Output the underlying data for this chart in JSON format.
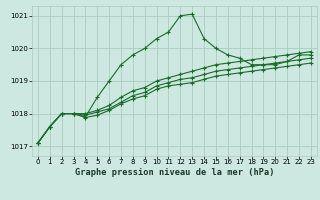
{
  "title": "Graphe pression niveau de la mer (hPa)",
  "background_color": "#cce8e0",
  "grid_color": "#aaccbe",
  "line_color": "#1a6b2a",
  "xlim": [
    -0.5,
    23.5
  ],
  "ylim": [
    1016.7,
    1021.3
  ],
  "yticks": [
    1017,
    1018,
    1019,
    1020,
    1021
  ],
  "xticks": [
    0,
    1,
    2,
    3,
    4,
    5,
    6,
    7,
    8,
    9,
    10,
    11,
    12,
    13,
    14,
    15,
    16,
    17,
    18,
    19,
    20,
    21,
    22,
    23
  ],
  "main_line": [
    1017.1,
    1017.6,
    1018.0,
    1018.0,
    1017.9,
    1018.5,
    1019.0,
    1019.5,
    1019.8,
    1020.0,
    1020.3,
    1020.5,
    1021.0,
    1021.05,
    1020.3,
    1020.0,
    1019.8,
    1019.7,
    1019.5,
    1019.5,
    1019.5,
    1019.6,
    1019.8,
    1019.8
  ],
  "line2": [
    1017.1,
    1017.6,
    1018.0,
    1018.0,
    1018.0,
    1018.1,
    1018.25,
    1018.5,
    1018.7,
    1018.8,
    1019.0,
    1019.1,
    1019.2,
    1019.3,
    1019.4,
    1019.5,
    1019.55,
    1019.6,
    1019.65,
    1019.7,
    1019.75,
    1019.8,
    1019.85,
    1019.9
  ],
  "line3": [
    1017.1,
    1017.6,
    1018.0,
    1018.0,
    1017.95,
    1018.05,
    1018.15,
    1018.35,
    1018.55,
    1018.65,
    1018.85,
    1018.95,
    1019.05,
    1019.1,
    1019.2,
    1019.3,
    1019.35,
    1019.4,
    1019.45,
    1019.5,
    1019.55,
    1019.6,
    1019.65,
    1019.7
  ],
  "line4": [
    1017.1,
    1017.6,
    1018.0,
    1018.0,
    1017.88,
    1017.95,
    1018.1,
    1018.3,
    1018.45,
    1018.55,
    1018.75,
    1018.85,
    1018.9,
    1018.95,
    1019.05,
    1019.15,
    1019.2,
    1019.25,
    1019.3,
    1019.35,
    1019.4,
    1019.45,
    1019.5,
    1019.55
  ],
  "tick_fontsize": 5.0,
  "label_fontsize": 6.2,
  "marker_size": 3.0,
  "line_width": 0.8
}
